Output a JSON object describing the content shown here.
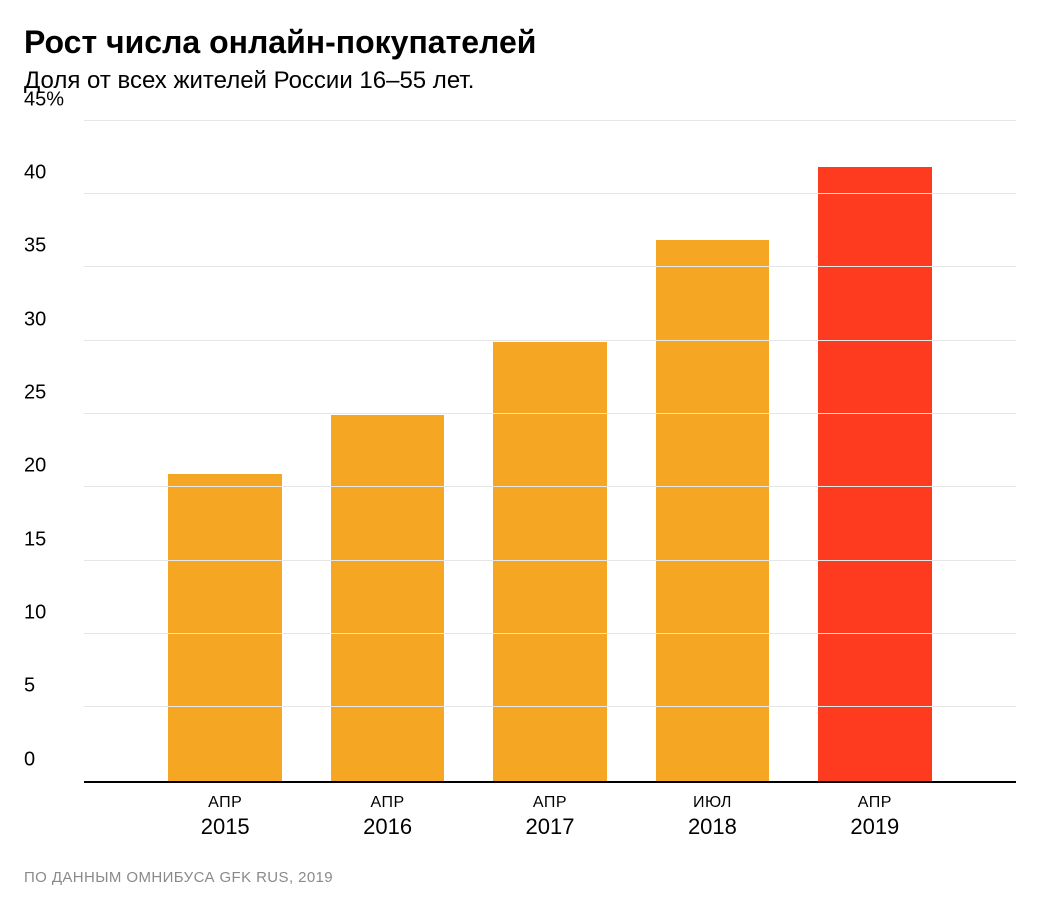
{
  "header": {
    "title": "Рост числа онлайн-покупателей",
    "subtitle": "Доля от всех жителей России 16–55 лет."
  },
  "chart": {
    "type": "bar",
    "y_axis": {
      "min": 0,
      "max": 45,
      "ticks": [
        0,
        5,
        10,
        15,
        20,
        25,
        30,
        35,
        40,
        45
      ],
      "tick_labels": [
        "0",
        "5",
        "10",
        "15",
        "20",
        "25",
        "30",
        "35",
        "40",
        "45%"
      ],
      "grid_color": "#e6e6e6",
      "label_fontsize": 20,
      "label_color": "#000000"
    },
    "x_axis": {
      "labels": [
        {
          "month": "АПР",
          "year": "2015"
        },
        {
          "month": "АПР",
          "year": "2016"
        },
        {
          "month": "АПР",
          "year": "2017"
        },
        {
          "month": "ИЮЛ",
          "year": "2018"
        },
        {
          "month": "АПР",
          "year": "2019"
        }
      ],
      "month_fontsize": 16,
      "year_fontsize": 22,
      "axis_line_color": "#000000"
    },
    "series": {
      "values": [
        21,
        25,
        30,
        37,
        42
      ],
      "colors": [
        "#f5a623",
        "#f5a623",
        "#f5a623",
        "#f5a623",
        "#ff3b1f"
      ],
      "bar_width_ratio": 0.7
    },
    "background_color": "#ffffff",
    "title_fontsize": 32,
    "subtitle_fontsize": 24
  },
  "source": "ПО ДАННЫМ ОМНИБУСА GFK RUS, 2019",
  "colors": {
    "text": "#000000",
    "muted": "#8a8a8a",
    "background": "#ffffff"
  }
}
